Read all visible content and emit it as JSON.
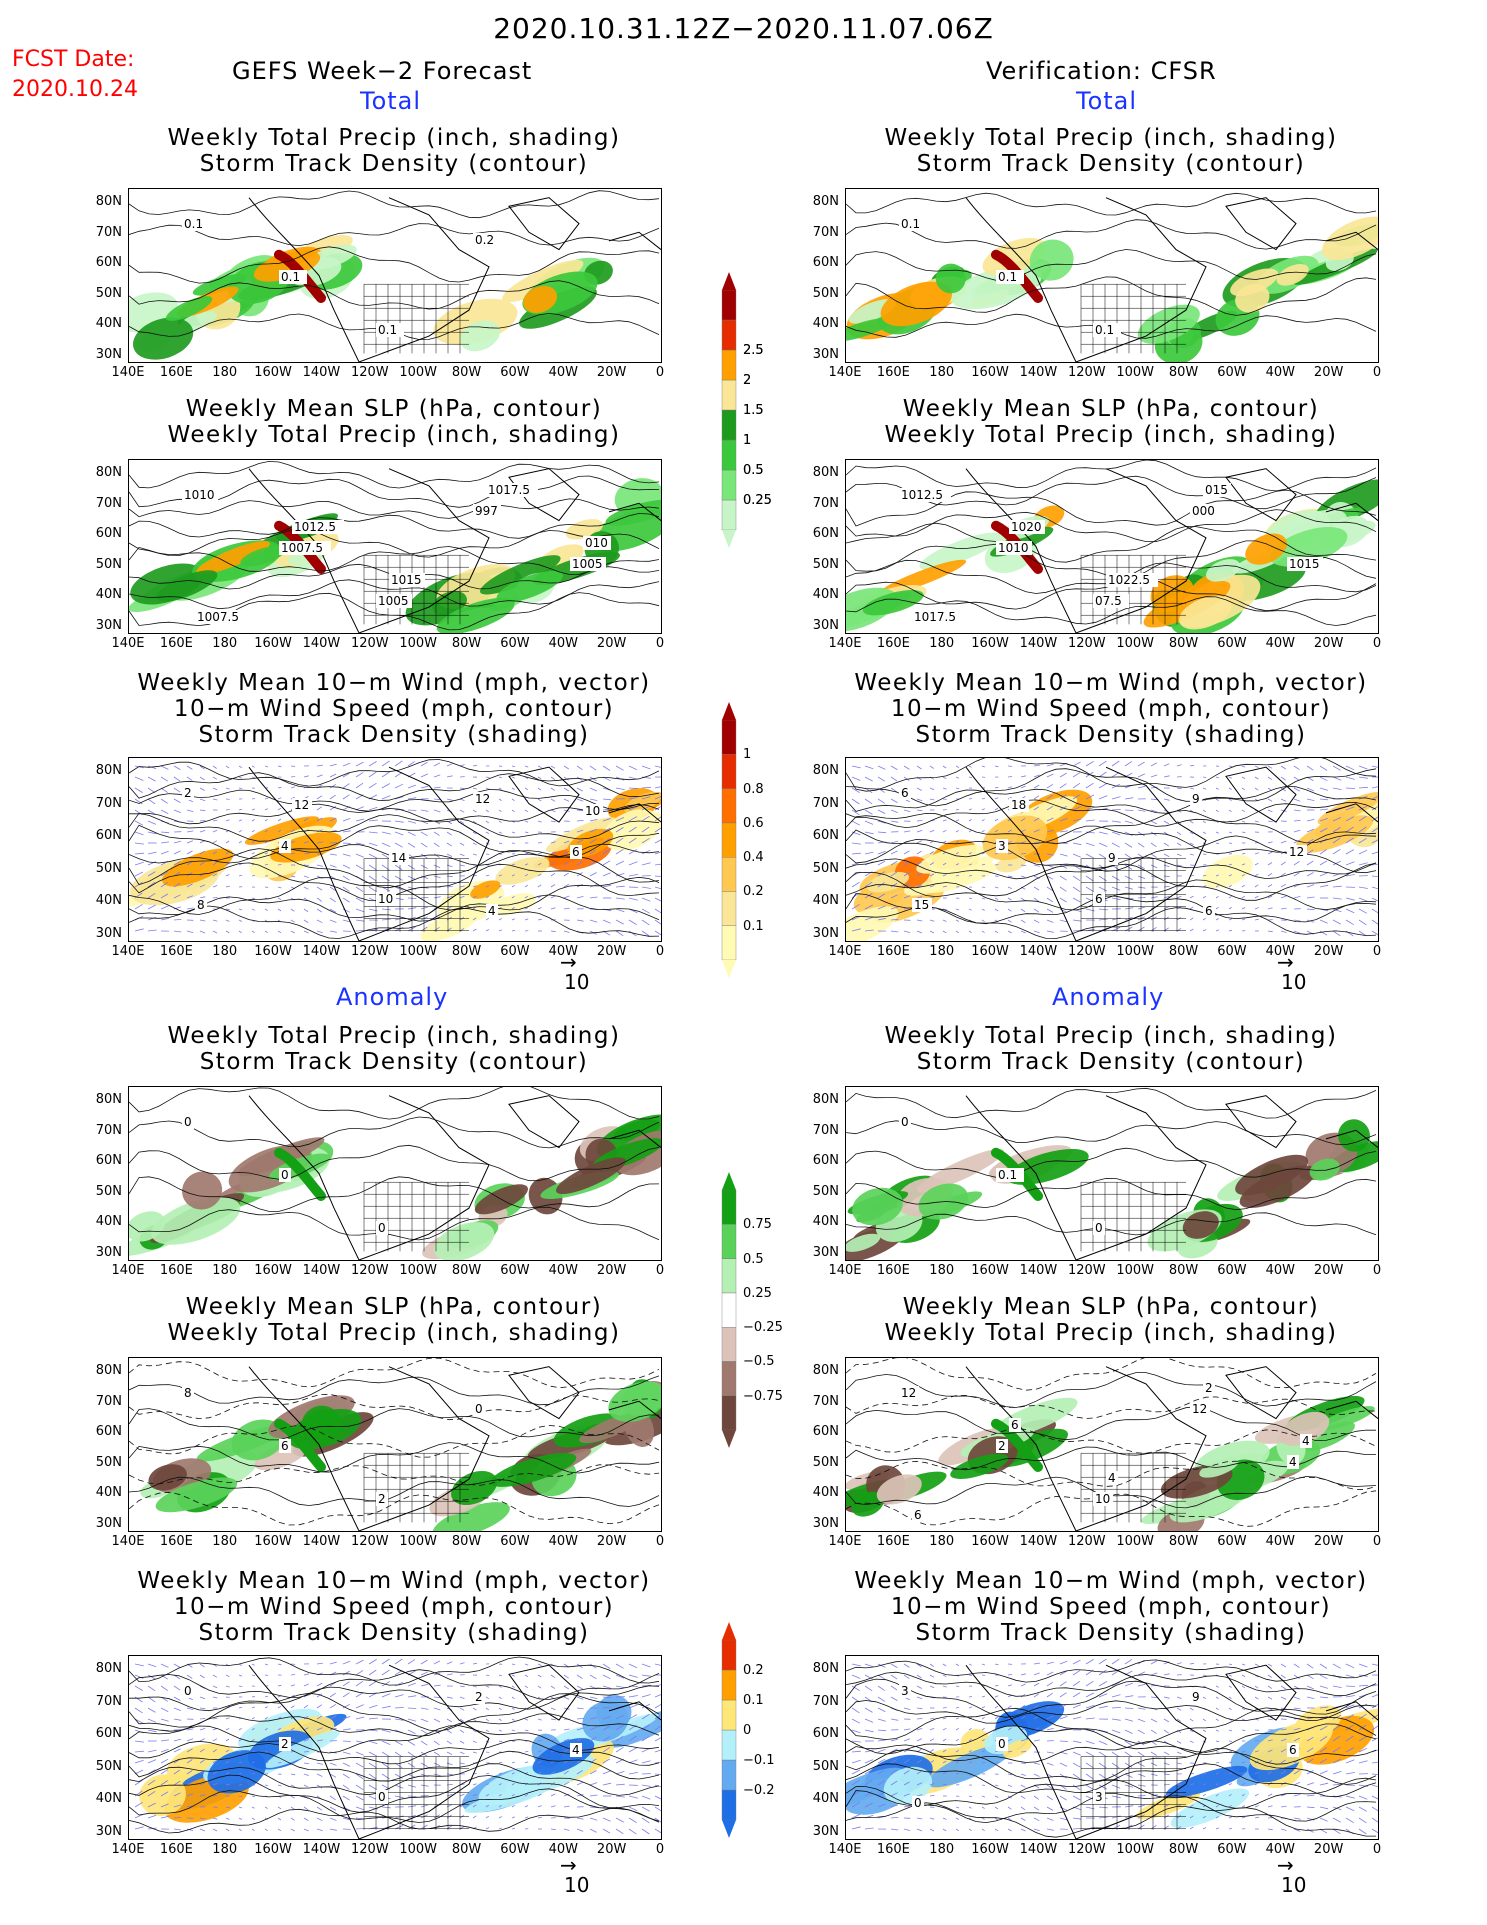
{
  "header": {
    "period": "2020.10.31.12Z−2020.11.07.06Z",
    "fcst_label": "FCST Date:",
    "fcst_date": "2020.10.24",
    "left_title": "GEFS Week−2 Forecast",
    "right_title": "Verification: CFSR"
  },
  "sections": {
    "total": "Total",
    "anomaly": "Anomaly"
  },
  "panel_titles": {
    "precip_storm": [
      "Weekly Total Precip (inch, shading)",
      "Storm Track Density (contour)"
    ],
    "slp_precip": [
      "Weekly Mean SLP (hPa, contour)",
      "Weekly Total Precip (inch, shading)"
    ],
    "wind_storm": [
      "Weekly Mean 10−m Wind (mph, vector)",
      "10−m Wind Speed (mph, contour)",
      "Storm Track Density (shading)"
    ]
  },
  "axes": {
    "lat_ticks": [
      "80N",
      "70N",
      "60N",
      "50N",
      "40N",
      "30N"
    ],
    "lon_ticks": [
      "140E",
      "160E",
      "180",
      "160W",
      "140W",
      "120W",
      "100W",
      "80W",
      "60W",
      "40W",
      "20W",
      "0"
    ]
  },
  "vector_ref": "10",
  "colorbars": {
    "precip_total": [
      "0.25",
      "0.5",
      "1",
      "1.5",
      "2",
      "2.5"
    ],
    "storm_total": [
      "0.1",
      "0.2",
      "0.4",
      "0.6",
      "0.8",
      "1"
    ],
    "precip_anom": [
      "−0.75",
      "−0.5",
      "−0.25",
      "0.25",
      "0.5",
      "0.75"
    ],
    "storm_anom": [
      "−0.2",
      "−0.1",
      "0",
      "0.1",
      "0.2"
    ]
  },
  "colors": {
    "precip_total": [
      "#c8f5c8",
      "#78e678",
      "#3cc83c",
      "#1e9b1e",
      "#fae696",
      "#ffa000",
      "#e62d00",
      "#a00000"
    ],
    "storm_total": [
      "#fffab4",
      "#fae696",
      "#ffc850",
      "#ffa000",
      "#ff6e00",
      "#e62d00",
      "#a00000"
    ],
    "precip_anom": [
      "#6e463c",
      "#a0786e",
      "#dcc3b9",
      "#ffffff",
      "#b4f0b4",
      "#5ad25a",
      "#14a014"
    ],
    "storm_anom": [
      "#1e6ee6",
      "#64aaf0",
      "#b4f0fa",
      "#ffe678",
      "#ffa000",
      "#e62d00"
    ],
    "title_blue": "#1a33ff",
    "fcst_red": "#ff0000"
  },
  "panel_labels": {
    "gefs_total_precip_storm": [
      "0.1",
      "0.1",
      "0.1",
      "0.2"
    ],
    "cfsr_total_precip_storm": [
      "0.1",
      "0.1",
      "0.1"
    ],
    "gefs_total_slp": [
      "1010",
      "1007.5",
      "1005",
      "997",
      "1005",
      "1007.5",
      "1012.5",
      "1015",
      "1017.5",
      "010"
    ],
    "cfsr_total_slp": [
      "1012.5",
      "1010",
      "07.5",
      "000",
      "1015",
      "1017.5",
      "1020",
      "1022.5",
      "015"
    ],
    "gefs_total_wind": [
      "2",
      "4",
      "10",
      "12",
      "6",
      "8",
      "12",
      "14",
      "4",
      "10"
    ],
    "cfsr_total_wind": [
      "6",
      "3",
      "6",
      "9",
      "12",
      "15",
      "18",
      "9",
      "6"
    ],
    "gefs_anom_precip_storm": [
      "0",
      "0",
      "0"
    ],
    "cfsr_anom_precip_storm": [
      "0",
      "0.1",
      "0"
    ],
    "gefs_anom_slp": [
      "8",
      "6",
      "2",
      "0"
    ],
    "cfsr_anom_slp": [
      "12",
      "2",
      "10",
      "12",
      "4",
      "6",
      "6",
      "4",
      "2",
      "4"
    ],
    "gefs_anom_wind": [
      "0",
      "2",
      "0",
      "2",
      "4"
    ],
    "cfsr_anom_wind": [
      "3",
      "0",
      "3",
      "9",
      "6",
      "0"
    ]
  }
}
